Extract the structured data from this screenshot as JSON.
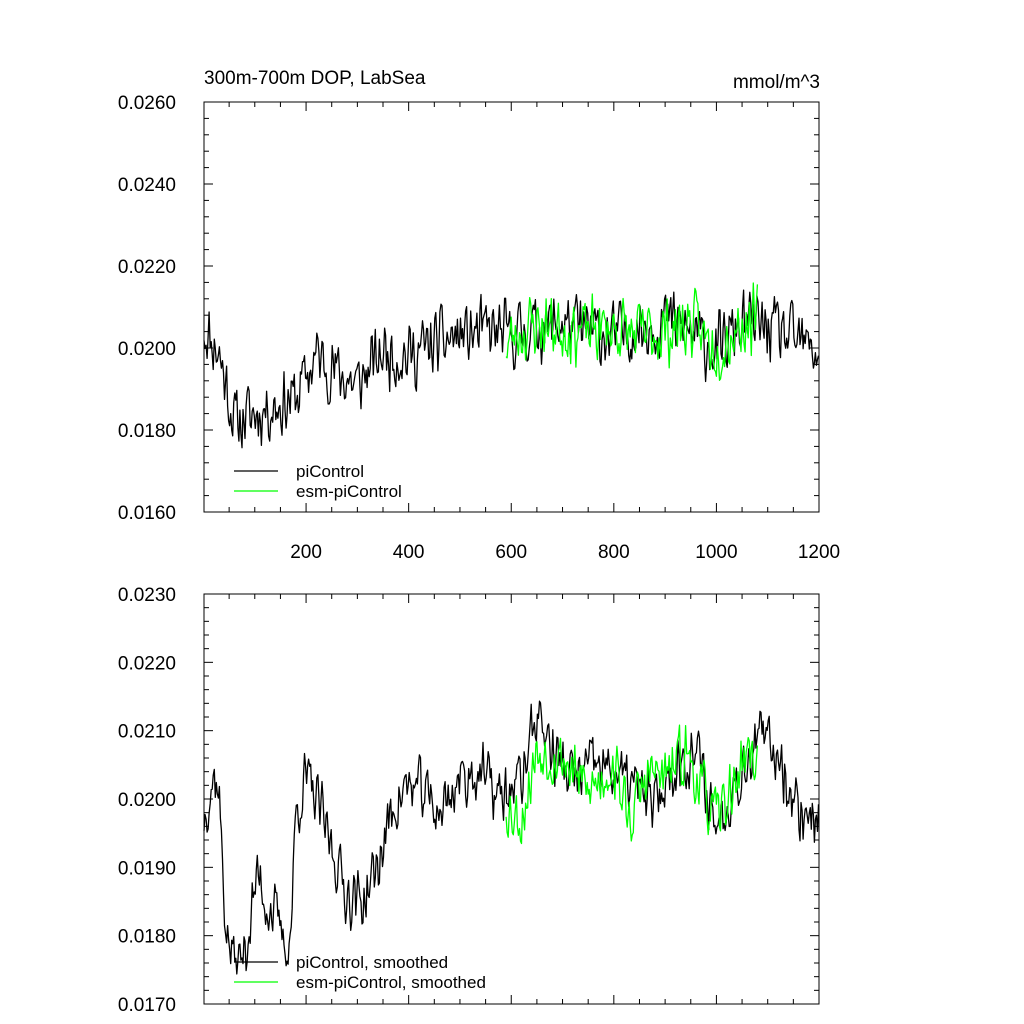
{
  "figure": {
    "title": "300m-700m DOP, LabSea",
    "units": "mmol/m^3"
  },
  "chart_data": [
    {
      "type": "line",
      "title": "300m-700m DOP, LabSea",
      "units_label": "mmol/m^3",
      "xlabel": "",
      "ylabel": "",
      "xlim": [
        1,
        1200
      ],
      "ylim": [
        0.016,
        0.026
      ],
      "x_ticks": [
        200,
        400,
        600,
        800,
        1000,
        1200
      ],
      "x_tick_labels": [
        "200",
        "400",
        "600",
        "800",
        "1000",
        "1200"
      ],
      "y_ticks": [
        0.016,
        0.018,
        0.02,
        0.022,
        0.024,
        0.026
      ],
      "y_tick_labels": [
        "0.0160",
        "0.0180",
        "0.0200",
        "0.0220",
        "0.0240",
        "0.0260"
      ],
      "legend_position": "bottom-left",
      "series": [
        {
          "name": "piControl",
          "color": "#000000",
          "anchors": [
            [
              1,
              0.0205
            ],
            [
              30,
              0.0199
            ],
            [
              60,
              0.0182
            ],
            [
              100,
              0.0184
            ],
            [
              140,
              0.0186
            ],
            [
              180,
              0.0188
            ],
            [
              220,
              0.0198
            ],
            [
              260,
              0.0194
            ],
            [
              300,
              0.0191
            ],
            [
              350,
              0.0199
            ],
            [
              400,
              0.0198
            ],
            [
              450,
              0.0201
            ],
            [
              500,
              0.0203
            ],
            [
              550,
              0.0204
            ],
            [
              600,
              0.0203
            ],
            [
              650,
              0.0205
            ],
            [
              700,
              0.0206
            ],
            [
              750,
              0.0204
            ],
            [
              800,
              0.0203
            ],
            [
              850,
              0.0205
            ],
            [
              900,
              0.0207
            ],
            [
              950,
              0.0204
            ],
            [
              1000,
              0.0199
            ],
            [
              1050,
              0.0206
            ],
            [
              1100,
              0.0205
            ],
            [
              1150,
              0.0202
            ],
            [
              1200,
              0.0199
            ]
          ],
          "noise_amplitude": 0.0011,
          "seed": 11
        },
        {
          "name": "esm-piControl",
          "color": "#00ff00",
          "anchors": [
            [
              590,
              0.0201
            ],
            [
              620,
              0.0204
            ],
            [
              650,
              0.0206
            ],
            [
              700,
              0.0205
            ],
            [
              750,
              0.0204
            ],
            [
              800,
              0.0205
            ],
            [
              850,
              0.0203
            ],
            [
              900,
              0.0204
            ],
            [
              950,
              0.0206
            ],
            [
              1000,
              0.02
            ],
            [
              1050,
              0.0206
            ],
            [
              1080,
              0.0207
            ]
          ],
          "noise_amplitude": 0.0011,
          "seed": 23
        }
      ]
    },
    {
      "type": "line",
      "title": "",
      "xlabel": "",
      "ylabel": "",
      "xlim": [
        1,
        1200
      ],
      "ylim": [
        0.017,
        0.023
      ],
      "x_ticks": [
        200,
        400,
        600,
        800,
        1000,
        1200
      ],
      "x_tick_labels": [],
      "y_ticks": [
        0.017,
        0.018,
        0.019,
        0.02,
        0.021,
        0.022,
        0.023
      ],
      "y_tick_labels": [
        "0.0170",
        "0.0180",
        "0.0190",
        "0.0200",
        "0.0210",
        "0.0220",
        "0.0230"
      ],
      "legend_position": "bottom-left",
      "series": [
        {
          "name": "piControl, smoothed",
          "color": "#000000",
          "anchors": [
            [
              1,
              0.0197
            ],
            [
              10,
              0.0201
            ],
            [
              20,
              0.0203
            ],
            [
              30,
              0.0202
            ],
            [
              40,
              0.0185
            ],
            [
              50,
              0.0178
            ],
            [
              60,
              0.0177
            ],
            [
              70,
              0.0176
            ],
            [
              80,
              0.0178
            ],
            [
              90,
              0.0181
            ],
            [
              100,
              0.0187
            ],
            [
              110,
              0.0189
            ],
            [
              120,
              0.0185
            ],
            [
              130,
              0.0184
            ],
            [
              140,
              0.0183
            ],
            [
              150,
              0.0181
            ],
            [
              160,
              0.0178
            ],
            [
              170,
              0.018
            ],
            [
              180,
              0.0198
            ],
            [
              200,
              0.0203
            ],
            [
              220,
              0.02
            ],
            [
              250,
              0.0193
            ],
            [
              280,
              0.0186
            ],
            [
              310,
              0.0185
            ],
            [
              340,
              0.019
            ],
            [
              370,
              0.0199
            ],
            [
              400,
              0.0202
            ],
            [
              430,
              0.0201
            ],
            [
              460,
              0.0198
            ],
            [
              500,
              0.0203
            ],
            [
              540,
              0.0204
            ],
            [
              580,
              0.02
            ],
            [
              620,
              0.0203
            ],
            [
              650,
              0.0213
            ],
            [
              680,
              0.0207
            ],
            [
              720,
              0.0203
            ],
            [
              760,
              0.0205
            ],
            [
              800,
              0.0204
            ],
            [
              840,
              0.0202
            ],
            [
              880,
              0.0199
            ],
            [
              920,
              0.0205
            ],
            [
              960,
              0.0207
            ],
            [
              1000,
              0.0196
            ],
            [
              1040,
              0.0203
            ],
            [
              1080,
              0.0209
            ],
            [
              1120,
              0.0207
            ],
            [
              1160,
              0.0198
            ],
            [
              1200,
              0.0198
            ]
          ],
          "noise_amplitude": 0.0006,
          "seed": 37
        },
        {
          "name": "esm-piControl, smoothed",
          "color": "#00ff00",
          "anchors": [
            [
              590,
              0.0199
            ],
            [
              620,
              0.0197
            ],
            [
              650,
              0.0207
            ],
            [
              700,
              0.0206
            ],
            [
              750,
              0.0201
            ],
            [
              800,
              0.0205
            ],
            [
              830,
              0.0197
            ],
            [
              870,
              0.0204
            ],
            [
              900,
              0.0203
            ],
            [
              940,
              0.0207
            ],
            [
              980,
              0.02
            ],
            [
              1000,
              0.0197
            ],
            [
              1040,
              0.0203
            ],
            [
              1060,
              0.0207
            ],
            [
              1080,
              0.0206
            ]
          ],
          "noise_amplitude": 0.0006,
          "seed": 53
        }
      ]
    }
  ]
}
